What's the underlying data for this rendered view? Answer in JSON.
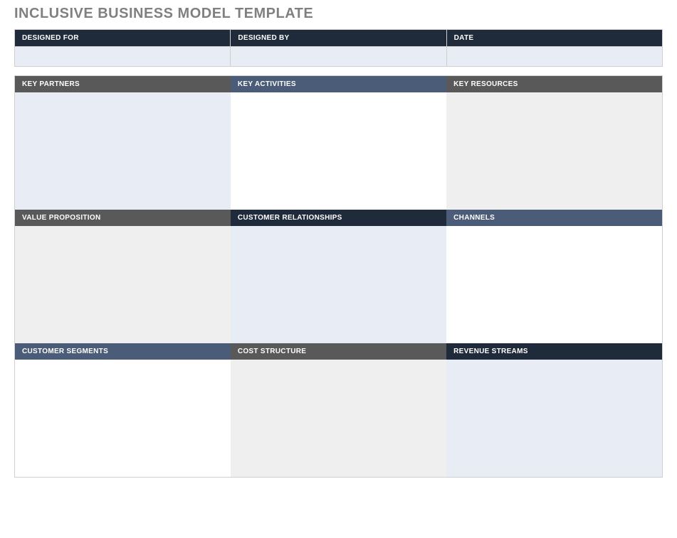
{
  "title": "INCLUSIVE BUSINESS MODEL TEMPLATE",
  "colors": {
    "title_text": "#808080",
    "header_dark_navy": "#1f2a3a",
    "header_slate_blue": "#4a5c78",
    "header_gray": "#595959",
    "body_light_blue": "#e8ecf4",
    "body_light_gray": "#efefef",
    "body_white": "#ffffff",
    "border": "#cfcfcf"
  },
  "meta": {
    "columns": [
      {
        "label": "DESIGNED FOR",
        "header_bg": "#1f2a3a",
        "body_bg": "#e8ecf4",
        "value": ""
      },
      {
        "label": "DESIGNED BY",
        "header_bg": "#1f2a3a",
        "body_bg": "#e8ecf4",
        "value": ""
      },
      {
        "label": "DATE",
        "header_bg": "#1f2a3a",
        "body_bg": "#e8ecf4",
        "value": ""
      }
    ]
  },
  "canvas": {
    "rows": [
      [
        {
          "label": "KEY PARTNERS",
          "header_bg": "#595959",
          "body_bg": "#e8ecf4",
          "value": ""
        },
        {
          "label": "KEY ACTIVITIES",
          "header_bg": "#4a5c78",
          "body_bg": "#ffffff",
          "value": ""
        },
        {
          "label": "KEY RESOURCES",
          "header_bg": "#595959",
          "body_bg": "#efefef",
          "value": ""
        }
      ],
      [
        {
          "label": "VALUE PROPOSITION",
          "header_bg": "#595959",
          "body_bg": "#efefef",
          "value": ""
        },
        {
          "label": "CUSTOMER RELATIONSHIPS",
          "header_bg": "#1f2a3a",
          "body_bg": "#e8ecf4",
          "value": ""
        },
        {
          "label": "CHANNELS",
          "header_bg": "#4a5c78",
          "body_bg": "#ffffff",
          "value": ""
        }
      ],
      [
        {
          "label": "CUSTOMER SEGMENTS",
          "header_bg": "#4a5c78",
          "body_bg": "#ffffff",
          "value": ""
        },
        {
          "label": "COST STRUCTURE",
          "header_bg": "#595959",
          "body_bg": "#efefef",
          "value": ""
        },
        {
          "label": "REVENUE STREAMS",
          "header_bg": "#1f2a3a",
          "body_bg": "#e8ecf4",
          "value": ""
        }
      ]
    ]
  }
}
